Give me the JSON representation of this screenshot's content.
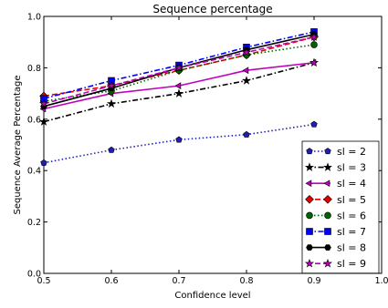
{
  "chart_data": {
    "type": "line",
    "title": "Sequence percentage",
    "xlabel": "Confidence level",
    "ylabel": "Sequence Average Percentage",
    "xlim": [
      0.5,
      1.0
    ],
    "ylim": [
      0.0,
      1.0
    ],
    "x_ticks": [
      "0.5",
      "0.6",
      "0.7",
      "0.8",
      "0.9",
      "1.0"
    ],
    "y_ticks": [
      "0.0",
      "0.2",
      "0.4",
      "0.6",
      "0.8",
      "1.0"
    ],
    "grid": false,
    "legend_position": "lower-right",
    "x": [
      0.5,
      0.6,
      0.7,
      0.8,
      0.9
    ],
    "series": [
      {
        "name": "sl = 2",
        "color": "#1f1fb4",
        "dash": "dotted",
        "marker": "pentagon",
        "values": [
          0.43,
          0.48,
          0.52,
          0.54,
          0.58
        ]
      },
      {
        "name": "sl = 3",
        "color": "#000000",
        "dash": "dashdot",
        "marker": "star",
        "values": [
          0.59,
          0.66,
          0.7,
          0.75,
          0.82
        ]
      },
      {
        "name": "sl = 4",
        "color": "#c000c0",
        "dash": "solid",
        "marker": "tri-left",
        "values": [
          0.64,
          0.7,
          0.73,
          0.79,
          0.82
        ]
      },
      {
        "name": "sl = 5",
        "color": "#e00000",
        "dash": "dashed",
        "marker": "diamond",
        "values": [
          0.69,
          0.73,
          0.79,
          0.85,
          0.92
        ]
      },
      {
        "name": "sl = 6",
        "color": "#006400",
        "dash": "dotted",
        "marker": "circle",
        "values": [
          0.67,
          0.71,
          0.79,
          0.85,
          0.89
        ]
      },
      {
        "name": "sl = 7",
        "color": "#0000ff",
        "dash": "dashdot",
        "marker": "square",
        "values": [
          0.68,
          0.75,
          0.81,
          0.88,
          0.94
        ]
      },
      {
        "name": "sl = 8",
        "color": "#000000",
        "dash": "solid",
        "marker": "hexagon",
        "values": [
          0.65,
          0.72,
          0.8,
          0.87,
          0.93
        ]
      },
      {
        "name": "sl = 9",
        "color": "#c000c0",
        "dash": "dashed",
        "marker": "star",
        "values": [
          0.66,
          0.73,
          0.8,
          0.86,
          0.92
        ]
      }
    ]
  }
}
